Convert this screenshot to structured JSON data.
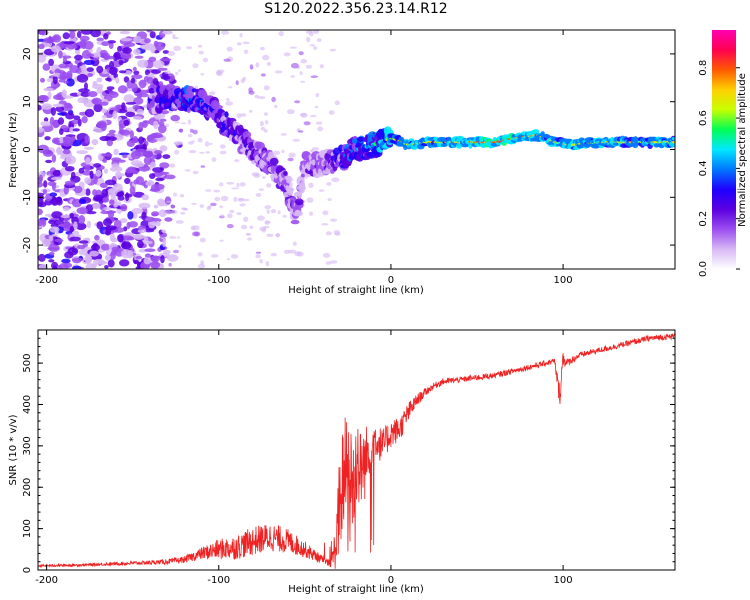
{
  "title": "S120.2022.356.23.14.R12",
  "chart_data": [
    {
      "type": "heatmap",
      "name": "spectrogram",
      "xlabel": "Height of straight line (km)",
      "ylabel": "Frequency (Hz)",
      "xlim": [
        -205,
        165
      ],
      "ylim": [
        -25,
        25
      ],
      "xticks": [
        -200,
        -100,
        0,
        100
      ],
      "xtick_labels": [
        "-200",
        "-100",
        "0",
        "100"
      ],
      "yticks": [
        -20,
        -10,
        0,
        10,
        20
      ],
      "ytick_labels": [
        "-20",
        "-10",
        "0",
        "10",
        "20"
      ],
      "colorbar": {
        "label": "Normalized spectral amplitude",
        "range": [
          0,
          0.95
        ],
        "ticks": [
          0.0,
          0.2,
          0.4,
          0.6,
          0.8
        ],
        "tick_labels": [
          "0.0",
          "0.2",
          "0.4",
          "0.6",
          "0.8"
        ],
        "colors": [
          "#ffffff",
          "#d7b8f5",
          "#9b4df0",
          "#5a00e0",
          "#1f00ff",
          "#0078ff",
          "#00e8ff",
          "#00ff55",
          "#c8ff00",
          "#ffd000",
          "#ff5a00",
          "#ff0050",
          "#ff00b4"
        ]
      },
      "ridge": {
        "heights_km": [
          -140,
          -130,
          -120,
          -110,
          -100,
          -90,
          -80,
          -70,
          -60,
          -55,
          -50,
          -40,
          -30,
          -20,
          -10,
          0,
          10,
          20,
          40,
          60,
          75,
          85,
          95,
          105,
          120,
          140,
          165
        ],
        "frequency_hz": [
          10,
          11,
          10.5,
          10,
          7,
          3,
          0,
          -3,
          -8,
          -14,
          -3,
          -3,
          -2,
          0,
          1,
          2.5,
          1,
          1.5,
          1.5,
          1.5,
          2.5,
          3,
          1.5,
          1,
          1.5,
          1.5,
          1.5
        ],
        "peak_amplitude": [
          0.25,
          0.3,
          0.35,
          0.35,
          0.3,
          0.25,
          0.2,
          0.15,
          0.12,
          0.1,
          0.12,
          0.15,
          0.3,
          0.4,
          0.5,
          0.6,
          0.75,
          0.7,
          0.75,
          0.85,
          0.8,
          0.75,
          0.7,
          0.72,
          0.75,
          0.7,
          0.7
        ]
      }
    },
    {
      "type": "line",
      "name": "snr",
      "xlabel": "Height of straight line (km)",
      "ylabel": "SNR (10 * v/v)",
      "xlim": [
        -205,
        165
      ],
      "ylim": [
        0,
        580
      ],
      "xticks": [
        -200,
        -100,
        0,
        100
      ],
      "xtick_labels": [
        "-200",
        "-100",
        "0",
        "100"
      ],
      "yticks": [
        0,
        100,
        200,
        300,
        400,
        500
      ],
      "ytick_labels": [
        "0",
        "100",
        "200",
        "300",
        "400",
        "500"
      ],
      "color": "#ee2222",
      "series": [
        {
          "name": "SNR",
          "x": [
            -205,
            -180,
            -160,
            -140,
            -130,
            -120,
            -110,
            -100,
            -90,
            -80,
            -70,
            -60,
            -50,
            -40,
            -35,
            -32,
            -30,
            -28,
            -25,
            -22,
            -20,
            -18,
            -15,
            -12,
            -10,
            -5,
            0,
            5,
            10,
            15,
            20,
            25,
            30,
            40,
            50,
            60,
            70,
            80,
            90,
            95,
            98,
            100,
            102,
            110,
            120,
            130,
            140,
            150,
            165
          ],
          "y": [
            10,
            12,
            15,
            18,
            20,
            25,
            40,
            50,
            55,
            70,
            80,
            70,
            50,
            25,
            15,
            60,
            150,
            220,
            250,
            200,
            280,
            240,
            260,
            300,
            320,
            300,
            330,
            340,
            380,
            410,
            430,
            445,
            455,
            460,
            465,
            470,
            480,
            490,
            500,
            505,
            420,
            515,
            500,
            520,
            530,
            540,
            550,
            560,
            565
          ],
          "noise": [
            3,
            3,
            4,
            5,
            6,
            8,
            15,
            25,
            30,
            35,
            35,
            30,
            20,
            10,
            8,
            60,
            120,
            140,
            140,
            130,
            120,
            100,
            90,
            60,
            50,
            40,
            35,
            30,
            25,
            15,
            10,
            8,
            8,
            7,
            7,
            7,
            7,
            7,
            7,
            7,
            30,
            25,
            10,
            7,
            7,
            7,
            7,
            7,
            7
          ]
        }
      ]
    }
  ]
}
